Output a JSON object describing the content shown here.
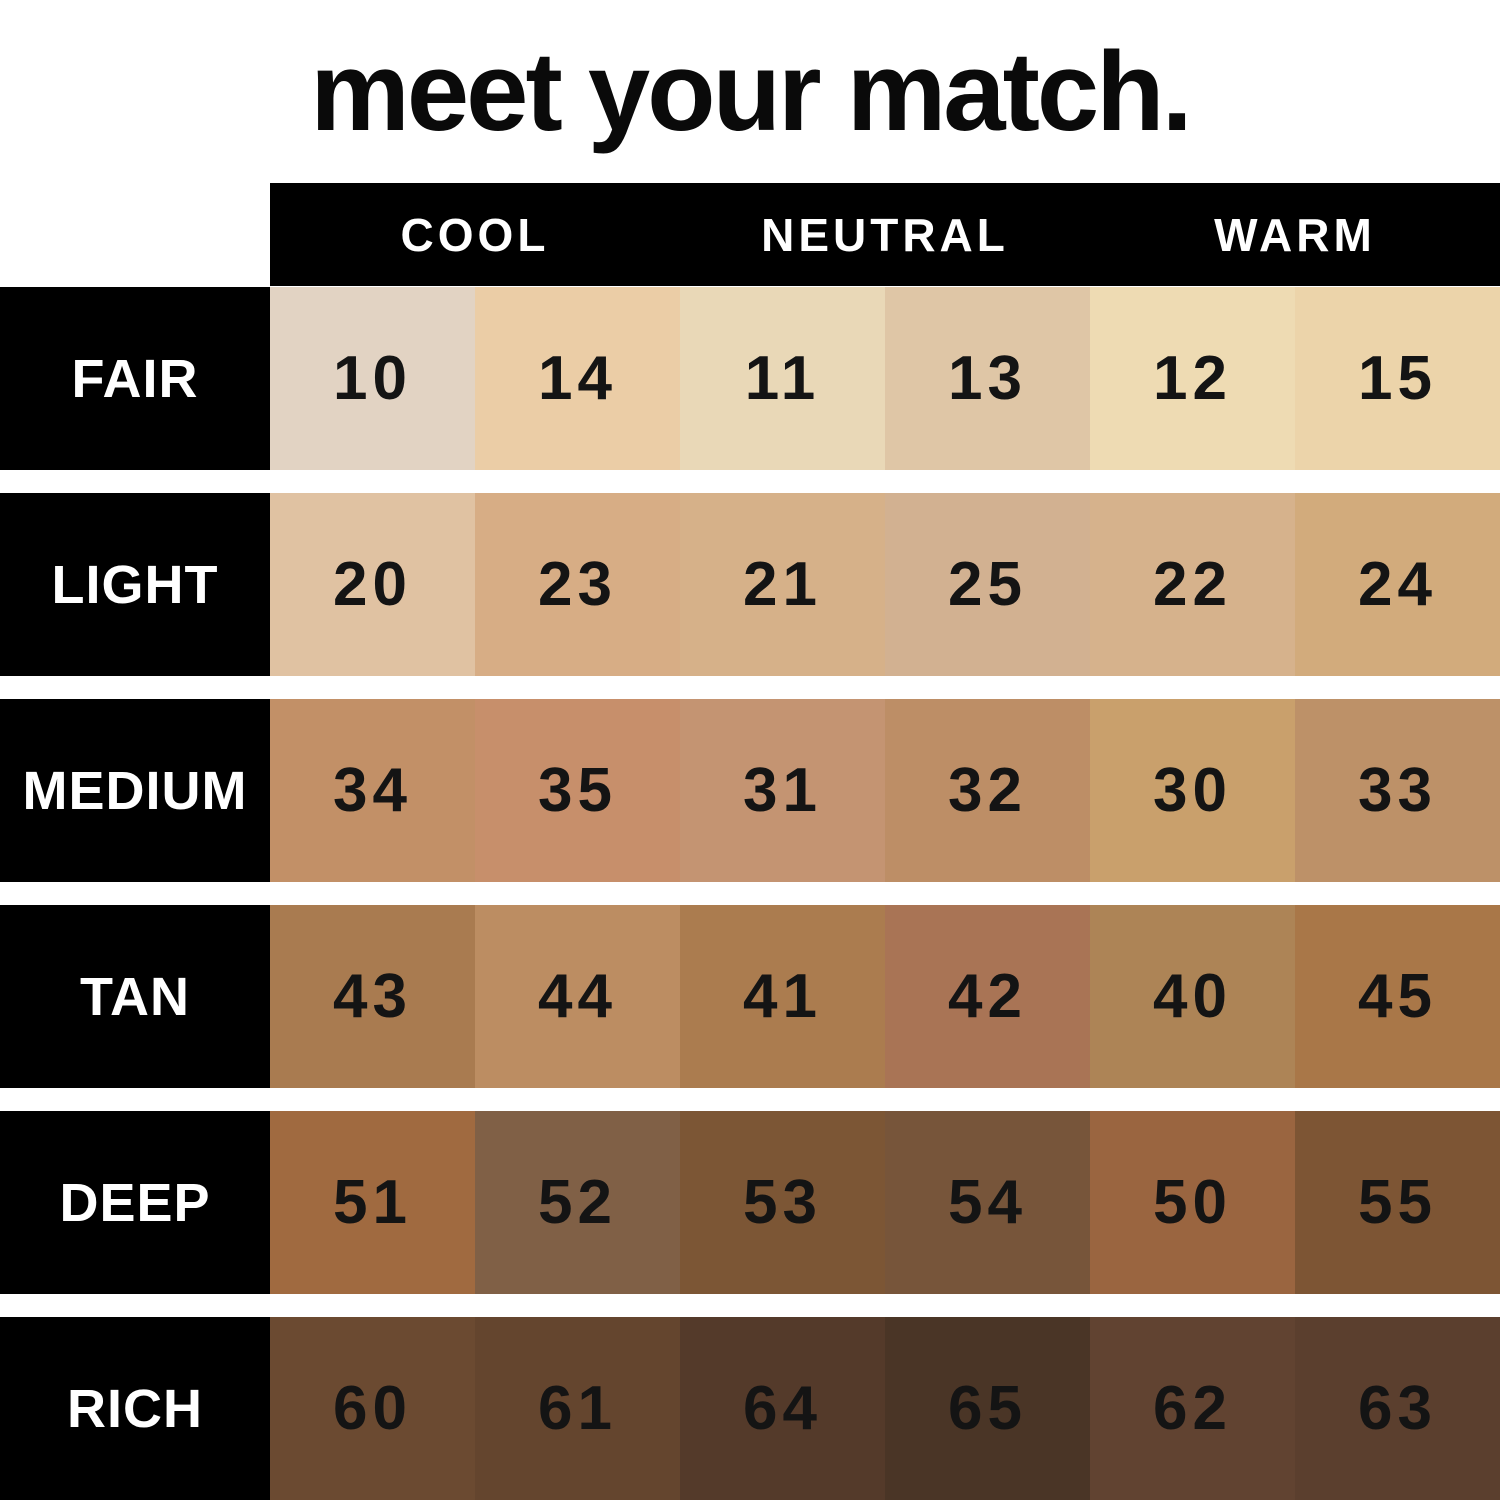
{
  "chart_data": {
    "type": "table",
    "title": "meet your match.",
    "column_groups": [
      "COOL",
      "NEUTRAL",
      "WARM"
    ],
    "row_labels": [
      "FAIR",
      "LIGHT",
      "MEDIUM",
      "TAN",
      "DEEP",
      "RICH"
    ],
    "layout": {
      "grid": "6 depth rows x 6 shade swatches; 3 undertone groups of 2 columns each",
      "legend_position": "top"
    },
    "colors": {
      "background": "#ffffff",
      "header_bg": "#000000",
      "header_text": "#ffffff",
      "row_label_bg": "#000000",
      "row_label_text": "#ffffff",
      "number_text": "#141414"
    },
    "rows": [
      {
        "label": "FAIR",
        "swatches": [
          {
            "number": "10",
            "color": "#e2d3c3"
          },
          {
            "number": "14",
            "color": "#ebcda6"
          },
          {
            "number": "11",
            "color": "#e9d8b7"
          },
          {
            "number": "13",
            "color": "#dfc6a6"
          },
          {
            "number": "12",
            "color": "#eedbb3"
          },
          {
            "number": "15",
            "color": "#ecd4aa"
          }
        ]
      },
      {
        "label": "LIGHT",
        "swatches": [
          {
            "number": "20",
            "color": "#e0c2a2"
          },
          {
            "number": "23",
            "color": "#d7ad85"
          },
          {
            "number": "21",
            "color": "#d6b189"
          },
          {
            "number": "25",
            "color": "#d2b191"
          },
          {
            "number": "22",
            "color": "#d6b28c"
          },
          {
            "number": "24",
            "color": "#d2ab7c"
          }
        ]
      },
      {
        "label": "MEDIUM",
        "swatches": [
          {
            "number": "34",
            "color": "#c29067"
          },
          {
            "number": "35",
            "color": "#c78f6b"
          },
          {
            "number": "31",
            "color": "#c49472"
          },
          {
            "number": "32",
            "color": "#bd8e66"
          },
          {
            "number": "30",
            "color": "#c9a06c"
          },
          {
            "number": "33",
            "color": "#bd9168"
          }
        ]
      },
      {
        "label": "TAN",
        "swatches": [
          {
            "number": "43",
            "color": "#a97b50"
          },
          {
            "number": "44",
            "color": "#bc8d62"
          },
          {
            "number": "41",
            "color": "#ab7c4f"
          },
          {
            "number": "42",
            "color": "#a97455"
          },
          {
            "number": "40",
            "color": "#ad8456"
          },
          {
            "number": "45",
            "color": "#a97748"
          }
        ]
      },
      {
        "label": "DEEP",
        "swatches": [
          {
            "number": "51",
            "color": "#a06a40"
          },
          {
            "number": "52",
            "color": "#806046"
          },
          {
            "number": "53",
            "color": "#7c5635"
          },
          {
            "number": "54",
            "color": "#77553a"
          },
          {
            "number": "50",
            "color": "#9a6540"
          },
          {
            "number": "55",
            "color": "#7d5534"
          }
        ]
      },
      {
        "label": "RICH",
        "swatches": [
          {
            "number": "60",
            "color": "#6b4a31"
          },
          {
            "number": "61",
            "color": "#64452e"
          },
          {
            "number": "64",
            "color": "#543a2a"
          },
          {
            "number": "65",
            "color": "#4a3526"
          },
          {
            "number": "62",
            "color": "#614331"
          },
          {
            "number": "63",
            "color": "#5b3f2e"
          }
        ]
      }
    ]
  }
}
